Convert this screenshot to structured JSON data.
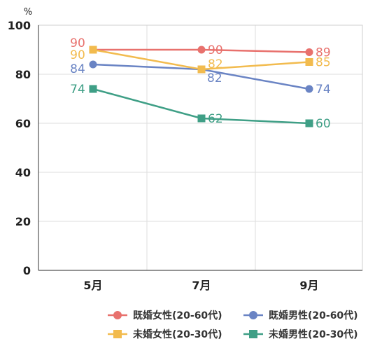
{
  "chart_data": {
    "type": "line",
    "unit": "%",
    "categories": [
      "5月",
      "7月",
      "9月"
    ],
    "ylim": [
      0,
      100
    ],
    "yticks": [
      0,
      20,
      40,
      60,
      80,
      100
    ],
    "grid": true,
    "legend_position": "bottom-right",
    "series": [
      {
        "name": "既婚女性(20-60代)",
        "values": [
          90,
          90,
          89
        ],
        "color": "#e8716d",
        "marker": "circle"
      },
      {
        "name": "既婚男性(20-60代)",
        "values": [
          84,
          82,
          74
        ],
        "color": "#6a84c4",
        "marker": "circle"
      },
      {
        "name": "未婚女性(20-30代)",
        "values": [
          90,
          82,
          85
        ],
        "color": "#f2bb4e",
        "marker": "square"
      },
      {
        "name": "未婚男性(20-30代)",
        "values": [
          74,
          62,
          60
        ],
        "color": "#3f9f86",
        "marker": "square"
      }
    ]
  }
}
